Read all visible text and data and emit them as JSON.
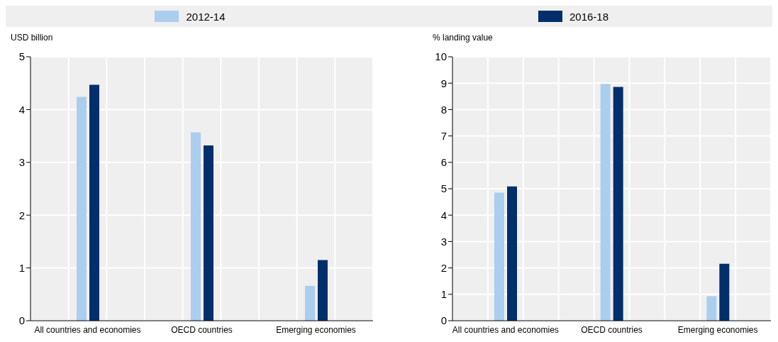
{
  "chart_data": [
    {
      "type": "bar",
      "ylabel": "USD billion",
      "categories": [
        "All countries and economies",
        "OECD countries",
        "Emerging economies"
      ],
      "series": [
        {
          "name": "2012-14",
          "color": "#abcdee",
          "values": [
            4.24,
            3.57,
            0.66
          ]
        },
        {
          "name": "2016-18",
          "color": "#002f6c",
          "values": [
            4.47,
            3.32,
            1.15
          ]
        }
      ],
      "ylim": [
        0,
        5
      ],
      "yticks": [
        0,
        1,
        2,
        3,
        4,
        5
      ],
      "grid": true,
      "legend": "top"
    },
    {
      "type": "bar",
      "ylabel": "% landing value",
      "categories": [
        "All countries and economies",
        "OECD countries",
        "Emerging economies"
      ],
      "series": [
        {
          "name": "2012-14",
          "color": "#abcdee",
          "values": [
            4.85,
            8.97,
            0.93
          ]
        },
        {
          "name": "2016-18",
          "color": "#002f6c",
          "values": [
            5.09,
            8.86,
            2.16
          ]
        }
      ],
      "ylim": [
        0,
        10
      ],
      "yticks": [
        0,
        1,
        2,
        3,
        4,
        5,
        6,
        7,
        8,
        9,
        10
      ],
      "grid": true,
      "legend": "top"
    }
  ]
}
